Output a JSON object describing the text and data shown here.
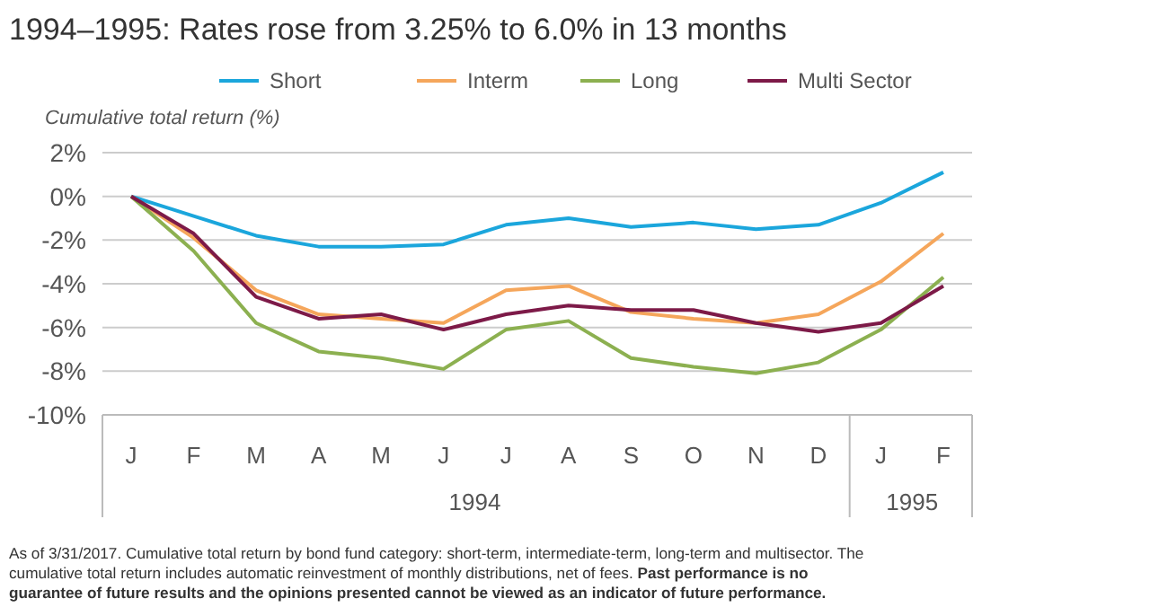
{
  "chart_data": {
    "type": "line",
    "title": "1994–1995: Rates rose from 3.25% to 6.0% in 13 months",
    "ylabel": "Cumulative total return (%)",
    "categories": [
      "J",
      "F",
      "M",
      "A",
      "M",
      "J",
      "J",
      "A",
      "S",
      "O",
      "N",
      "D",
      "J",
      "F"
    ],
    "ylim": [
      -10,
      2
    ],
    "yticks": [
      {
        "value": -10,
        "label": "-10%"
      },
      {
        "value": -8,
        "label": "-8%"
      },
      {
        "value": -6,
        "label": "-6%"
      },
      {
        "value": -4,
        "label": "-4%"
      },
      {
        "value": -2,
        "label": "-2%"
      },
      {
        "value": 0,
        "label": "0%"
      },
      {
        "value": 2,
        "label": "2%"
      }
    ],
    "grid": "y",
    "legend": "top",
    "marker": "none",
    "line_style": "solid",
    "series": [
      {
        "name": "Short",
        "color": "#1ba6dc",
        "values": [
          0,
          -0.9,
          -1.8,
          -2.3,
          -2.3,
          -2.2,
          -1.3,
          -1.0,
          -1.4,
          -1.2,
          -1.5,
          -1.3,
          -0.3,
          1.1
        ]
      },
      {
        "name": "Interm",
        "color": "#f5a65b",
        "values": [
          0,
          -1.9,
          -4.3,
          -5.4,
          -5.6,
          -5.8,
          -4.3,
          -4.1,
          -5.3,
          -5.6,
          -5.8,
          -5.4,
          -3.9,
          -1.7
        ]
      },
      {
        "name": "Long",
        "color": "#8cb050",
        "values": [
          0,
          -2.5,
          -5.8,
          -7.1,
          -7.4,
          -7.9,
          -6.1,
          -5.7,
          -7.4,
          -7.8,
          -8.1,
          -7.6,
          -6.1,
          -3.7
        ]
      },
      {
        "name": "Multi Sector",
        "color": "#7d1a48",
        "values": [
          0,
          -1.7,
          -4.6,
          -5.6,
          -5.4,
          -6.1,
          -5.4,
          -5.0,
          -5.2,
          -5.2,
          -5.8,
          -6.2,
          -5.8,
          -4.1
        ]
      }
    ],
    "annotations": [
      "1994",
      "1995",
      "As of 3/31/2017. Cumulative total return by bond fund category: short-term, intermediate-term, long-term and multisector. The cumulative total return includes automatic reinvestment of monthly distributions, net of fees.",
      "Past performance is no guarantee of future results and the opinions presented cannot be viewed as an indicator of future performance."
    ]
  }
}
